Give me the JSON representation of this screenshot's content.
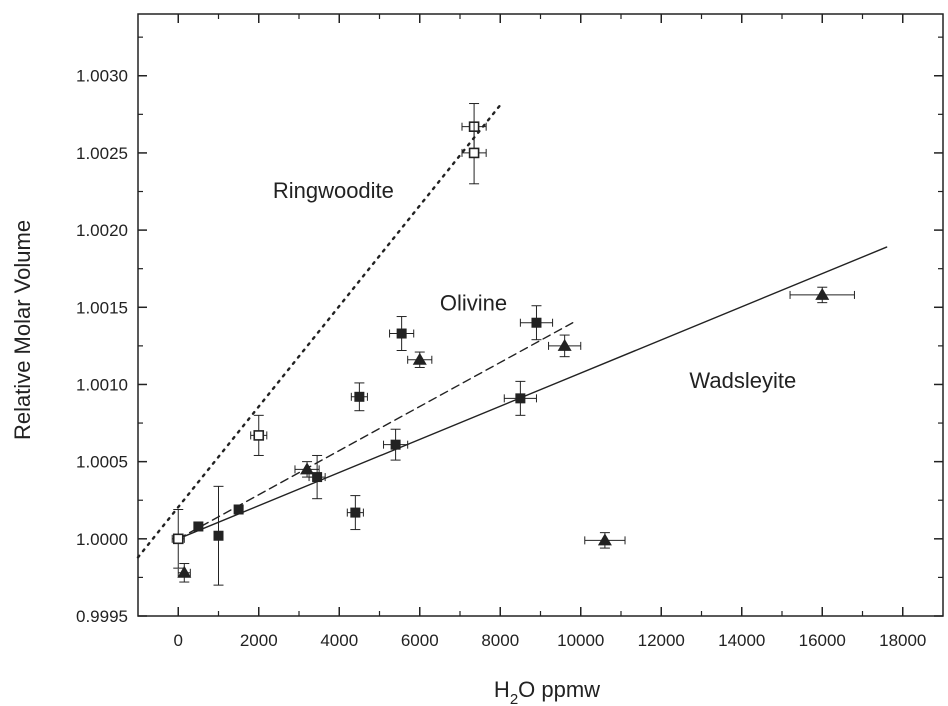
{
  "chart_data": {
    "type": "scatter",
    "title": "",
    "xlabel": {
      "prefix": "H",
      "sub": "2",
      "suffix": "O ppmw"
    },
    "ylabel": "Relative Molar Volume",
    "xlim": [
      -1000,
      19000
    ],
    "ylim": [
      0.9995,
      1.0034
    ],
    "xticks": [
      0,
      2000,
      4000,
      6000,
      8000,
      10000,
      12000,
      14000,
      16000,
      18000
    ],
    "xtick_labels": [
      "0",
      "2000",
      "4000",
      "6000",
      "8000",
      "10000",
      "12000",
      "14000",
      "16000",
      "18000"
    ],
    "yticks": [
      0.9995,
      1.0,
      1.0005,
      1.001,
      1.0015,
      1.002,
      1.0025,
      1.003
    ],
    "ytick_labels": [
      "0.9995",
      "1.0000",
      "1.0005",
      "1.0010",
      "1.0015",
      "1.0020",
      "1.0025",
      "1.0030"
    ],
    "grid": false,
    "series": [
      {
        "name": "Ringwoodite",
        "marker": "open-square",
        "points": [
          {
            "x": 0,
            "y": 1.0,
            "xerr": 150,
            "yerr": 0.00019
          },
          {
            "x": 2000,
            "y": 1.00067,
            "xerr": 200,
            "yerr": 0.00013
          },
          {
            "x": 7350,
            "y": 1.00267,
            "xerr": 300,
            "yerr": 0.00015
          },
          {
            "x": 7350,
            "y": 1.0025,
            "xerr": 300,
            "yerr": 0.0002
          }
        ],
        "fit": {
          "style": "dotted",
          "x": [
            -1000,
            8000
          ],
          "y": [
            0.99988,
            1.00281
          ]
        }
      },
      {
        "name": "Olivine",
        "marker": "filled-square",
        "points": [
          {
            "x": 500,
            "y": 1.00008,
            "xerr": 0,
            "yerr": 0
          },
          {
            "x": 1000,
            "y": 1.00002,
            "xerr": 0,
            "yerr": 0.00032
          },
          {
            "x": 1500,
            "y": 1.00019,
            "xerr": 0,
            "yerr": 0
          },
          {
            "x": 3450,
            "y": 1.0004,
            "xerr": 200,
            "yerr": 0.00014
          },
          {
            "x": 4400,
            "y": 1.00017,
            "xerr": 200,
            "yerr": 0.00011
          },
          {
            "x": 4500,
            "y": 1.00092,
            "xerr": 200,
            "yerr": 9e-05
          },
          {
            "x": 5400,
            "y": 1.00061,
            "xerr": 300,
            "yerr": 0.0001
          },
          {
            "x": 5550,
            "y": 1.00133,
            "xerr": 300,
            "yerr": 0.00011
          },
          {
            "x": 8500,
            "y": 1.00091,
            "xerr": 400,
            "yerr": 0.00011
          },
          {
            "x": 8900,
            "y": 1.0014,
            "xerr": 400,
            "yerr": 0.00011
          }
        ],
        "fit": {
          "style": "dashed",
          "x": [
            0,
            9800
          ],
          "y": [
            1.0,
            1.0014
          ]
        }
      },
      {
        "name": "Wadsleyite",
        "marker": "filled-triangle",
        "points": [
          {
            "x": 150,
            "y": 0.99978,
            "xerr": 150,
            "yerr": 6e-05
          },
          {
            "x": 3200,
            "y": 1.00045,
            "xerr": 300,
            "yerr": 5e-05
          },
          {
            "x": 6000,
            "y": 1.00116,
            "xerr": 300,
            "yerr": 5e-05
          },
          {
            "x": 9600,
            "y": 1.00125,
            "xerr": 400,
            "yerr": 7e-05
          },
          {
            "x": 10600,
            "y": 0.99999,
            "xerr": 500,
            "yerr": 5e-05
          },
          {
            "x": 16000,
            "y": 1.00158,
            "xerr": 800,
            "yerr": 5e-05
          }
        ],
        "fit": {
          "style": "solid",
          "x": [
            0,
            17600
          ],
          "y": [
            1.0,
            1.00189
          ]
        }
      }
    ],
    "annotations": [
      {
        "text": "Ringwoodite",
        "x": 2350,
        "y": 1.00226
      },
      {
        "text": "Olivine",
        "x": 6500,
        "y": 1.00153
      },
      {
        "text": "Wadsleyite",
        "x": 12700,
        "y": 1.00103
      }
    ]
  }
}
